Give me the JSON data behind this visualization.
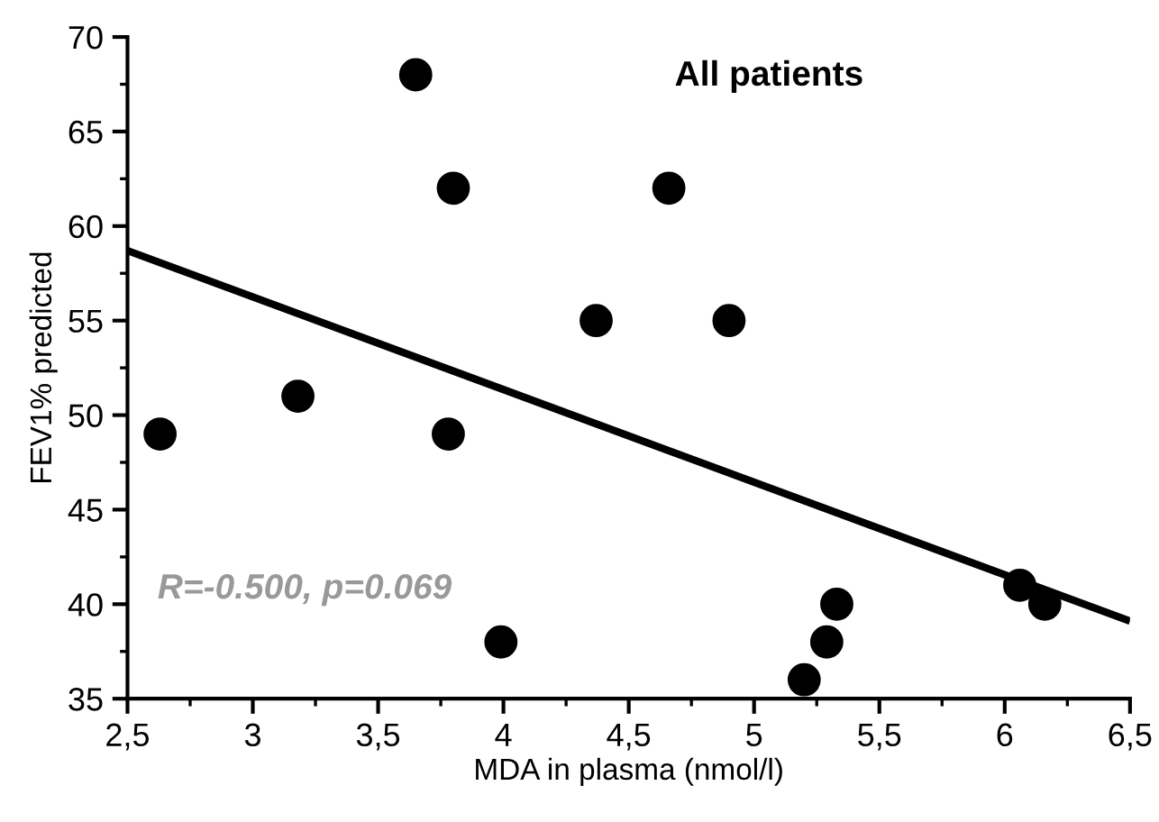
{
  "chart_data": {
    "type": "scatter",
    "title": "All patients",
    "xlabel": "MDA in plasma (nmol/l)",
    "ylabel": "FEV1% predicted",
    "annotations": [
      "R=-0.500, p=0.069"
    ],
    "xlim": [
      2.5,
      6.5
    ],
    "ylim": [
      35,
      70
    ],
    "xticks": [
      {
        "value": 2.5,
        "label": "2,5"
      },
      3,
      {
        "value": 3.5,
        "label": "3,5"
      },
      4,
      {
        "value": 4.5,
        "label": "4,5"
      },
      5,
      {
        "value": 5.5,
        "label": "5,5"
      },
      6,
      {
        "value": 6.5,
        "label": "6,5"
      }
    ],
    "yticks": [
      35,
      40,
      45,
      50,
      55,
      60,
      65,
      70
    ],
    "grid": false,
    "marker": "circle",
    "series": [
      {
        "color": "#000000",
        "x": [
          2.63,
          3.18,
          3.65,
          3.8,
          3.78,
          3.99,
          4.37,
          4.66,
          4.9,
          5.33,
          5.29,
          5.2,
          6.06,
          6.16
        ],
        "values": [
          49,
          51,
          68,
          62,
          49,
          38,
          55,
          62,
          55,
          40,
          38,
          36,
          41,
          40
        ]
      },
      {
        "type": "line",
        "color": "#000000",
        "line_style": "solid",
        "marker": "none",
        "x": [
          2.5,
          6.5
        ],
        "values": [
          58.7,
          39.1
        ]
      }
    ]
  }
}
